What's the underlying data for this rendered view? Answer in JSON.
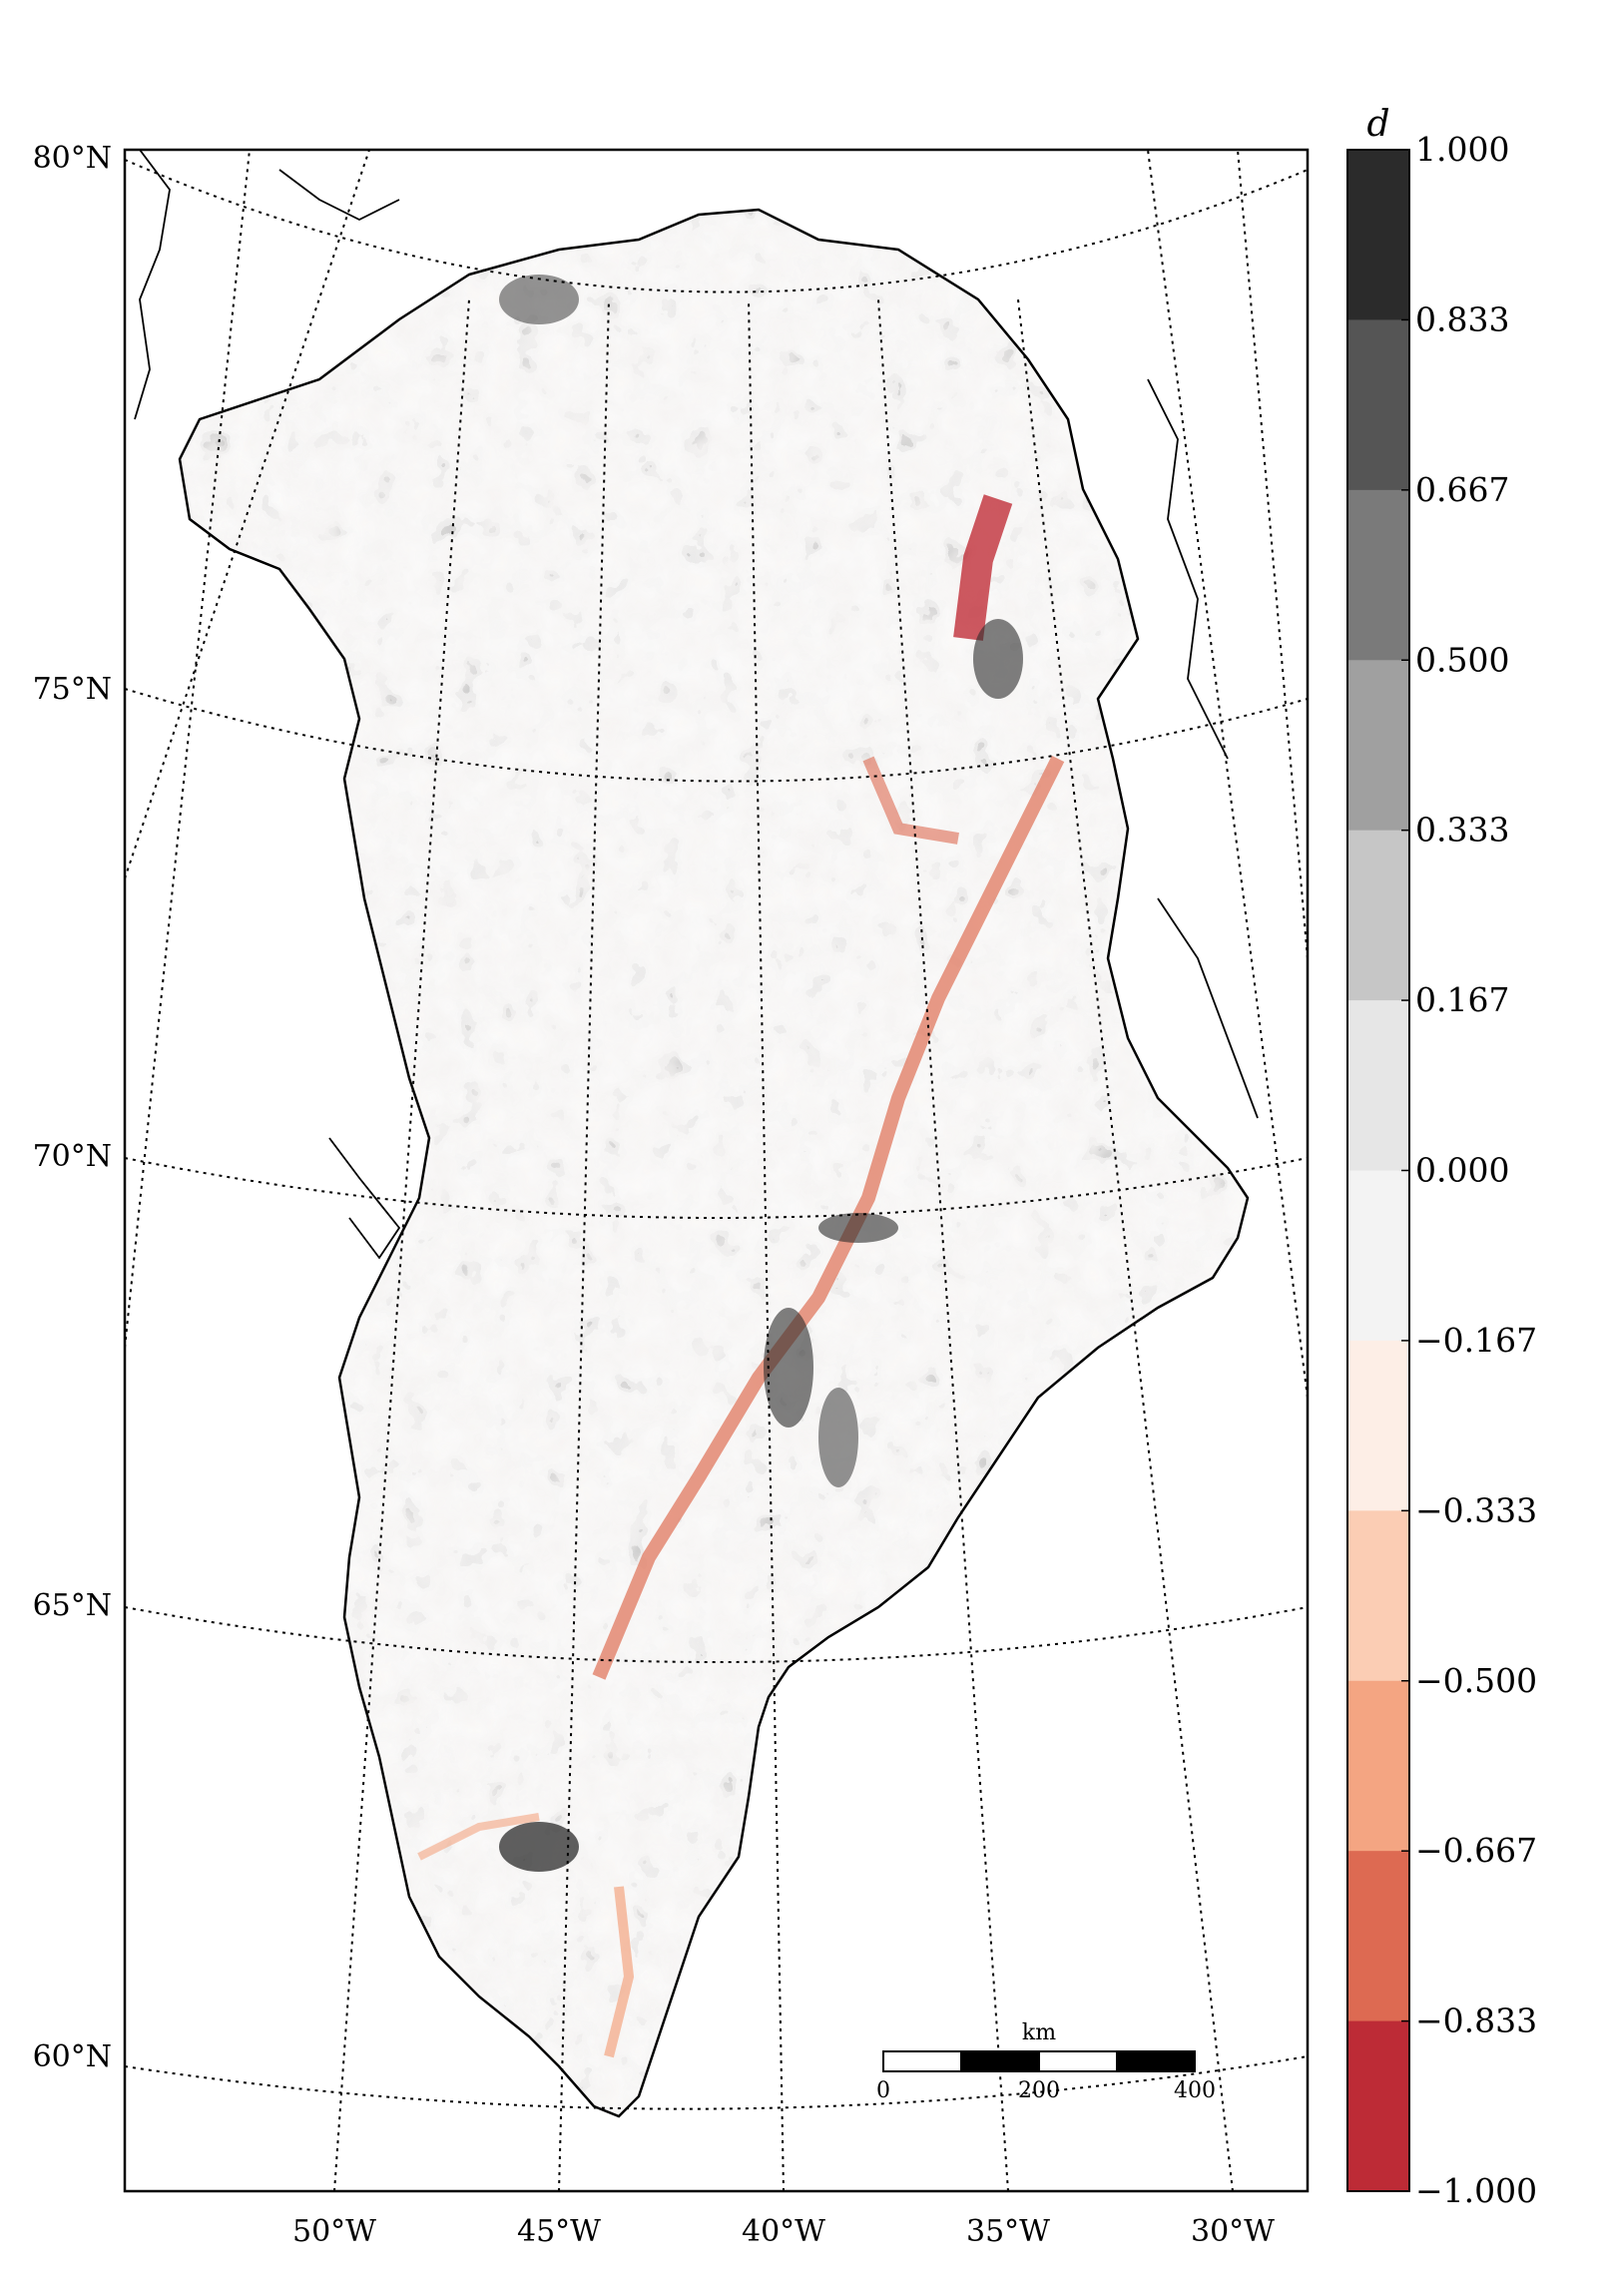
{
  "chart_data": {
    "type": "heatmap",
    "lat_labels": [
      "80°N",
      "75°N",
      "70°N",
      "65°N",
      "60°N"
    ],
    "lon_labels": [
      "50°W",
      "45°W",
      "40°W",
      "35°W",
      "30°W"
    ],
    "grid": "on",
    "colorbar": {
      "title": "d",
      "range": [
        -1.0,
        1.0
      ],
      "tick_labels": [
        "1.000",
        "0.833",
        "0.667",
        "0.500",
        "0.333",
        "0.167",
        "0.000",
        "−0.167",
        "−0.333",
        "−0.500",
        "−0.667",
        "−0.833",
        "−1.000"
      ],
      "colors": [
        "#2b2b2b",
        "#555555",
        "#7a7a7a",
        "#a0a0a0",
        "#c6c6c6",
        "#e6e6e6",
        "#f3f3f3",
        "#fdeee6",
        "#fbcdb4",
        "#f4a582",
        "#dd6a52",
        "#bd2b36",
        "#7a0b22"
      ]
    },
    "scale_bar": {
      "unit": "km",
      "tick_labels": [
        "0",
        "200",
        "400"
      ]
    }
  }
}
